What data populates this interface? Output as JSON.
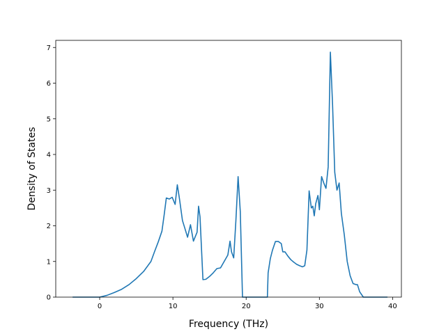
{
  "chart_data": {
    "type": "line",
    "title": "",
    "xlabel": "Frequency (THz)",
    "ylabel": "Density of States",
    "xlim": [
      -6.0,
      41.2
    ],
    "ylim": [
      0,
      7.2
    ],
    "xticks": [
      0,
      10,
      20,
      30,
      40
    ],
    "yticks": [
      0,
      1,
      2,
      3,
      4,
      5,
      6,
      7
    ],
    "grid": false,
    "legend": "none",
    "series": [
      {
        "color": "#1f77b4",
        "x": [
          -3.7,
          0.0,
          1.0,
          2.0,
          3.0,
          4.0,
          5.0,
          6.0,
          7.0,
          7.5,
          8.0,
          8.5,
          8.8,
          9.1,
          9.5,
          9.9,
          10.3,
          10.6,
          10.9,
          11.3,
          11.6,
          12.0,
          12.4,
          12.8,
          13.3,
          13.5,
          13.7,
          14.1,
          14.5,
          15.0,
          15.5,
          16.0,
          16.5,
          17.0,
          17.5,
          17.8,
          18.0,
          18.3,
          18.6,
          18.9,
          19.2,
          19.5,
          19.6,
          22.9,
          23.0,
          23.3,
          23.6,
          24.0,
          24.4,
          24.8,
          25.0,
          25.3,
          25.7,
          26.1,
          26.5,
          26.9,
          27.3,
          27.7,
          28.0,
          28.3,
          28.6,
          28.9,
          29.1,
          29.3,
          29.5,
          29.8,
          30.0,
          30.3,
          30.6,
          30.9,
          31.2,
          31.5,
          31.8,
          32.1,
          32.4,
          32.7,
          33.0,
          33.4,
          33.8,
          34.2,
          34.6,
          35.0,
          35.2,
          35.5,
          36.0,
          39.3
        ],
        "y": [
          0.0,
          0.0,
          0.05,
          0.13,
          0.22,
          0.35,
          0.52,
          0.72,
          1.0,
          1.28,
          1.55,
          1.85,
          2.3,
          2.78,
          2.75,
          2.8,
          2.6,
          3.15,
          2.75,
          2.15,
          1.95,
          1.68,
          2.03,
          1.57,
          1.82,
          2.55,
          2.25,
          0.49,
          0.5,
          0.58,
          0.68,
          0.8,
          0.82,
          1.0,
          1.18,
          1.57,
          1.27,
          1.1,
          2.15,
          3.38,
          2.4,
          0.0,
          0.0,
          0.0,
          0.68,
          1.08,
          1.32,
          1.56,
          1.56,
          1.5,
          1.27,
          1.27,
          1.15,
          1.05,
          0.98,
          0.92,
          0.88,
          0.85,
          0.88,
          1.32,
          2.98,
          2.5,
          2.55,
          2.28,
          2.62,
          2.85,
          2.45,
          3.38,
          3.2,
          3.05,
          3.65,
          6.87,
          5.4,
          3.5,
          3.0,
          3.2,
          2.35,
          1.75,
          1.0,
          0.6,
          0.38,
          0.35,
          0.35,
          0.15,
          0.0,
          0.0
        ]
      }
    ]
  }
}
